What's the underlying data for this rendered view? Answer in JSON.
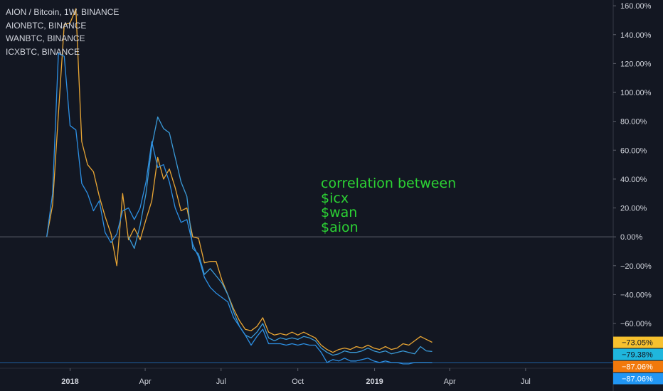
{
  "legend": {
    "main": "AION / Bitcoin, 1W, BINANCE",
    "series": [
      "AIONBTC, BINANCE",
      "WANBTC, BINANCE",
      "ICXBTC, BINANCE"
    ]
  },
  "annotation": [
    "correlation between",
    "$icx",
    "$wan",
    "$aion"
  ],
  "colors": {
    "background": "#131722",
    "orange": "#e9a634",
    "blue_light": "#3a9ad8",
    "blue": "#2c8fe3",
    "badge_yellow": "#f7c12e",
    "badge_cyan": "#1fb6dd",
    "badge_orange": "#f1790b",
    "badge_blue": "#2196f3",
    "zero_line": "#5d606b",
    "baseline": "#1f5fa0"
  },
  "chart_data": {
    "type": "line",
    "ylabel": "",
    "xlabel": "",
    "ylim": [
      -91,
      164
    ],
    "y_ticks": [
      160,
      140,
      120,
      100,
      80,
      60,
      40,
      20,
      0,
      -20,
      -40,
      -60
    ],
    "y_tick_labels": [
      "160.00%",
      "140.00%",
      "120.00%",
      "100.00%",
      "80.00%",
      "60.00%",
      "40.00%",
      "20.00%",
      "0.00%",
      "−20.00%",
      "−40.00%",
      "−60.00%"
    ],
    "x_labels": [
      {
        "label": "2018",
        "date": "2018-01-01",
        "bold": true
      },
      {
        "label": "Apr",
        "date": "2018-04-01",
        "bold": false
      },
      {
        "label": "Jul",
        "date": "2018-07-01",
        "bold": false
      },
      {
        "label": "Oct",
        "date": "2018-10-01",
        "bold": false
      },
      {
        "label": "2019",
        "date": "2019-01-01",
        "bold": true
      },
      {
        "label": "Apr",
        "date": "2019-04-01",
        "bold": false
      },
      {
        "label": "Jul",
        "date": "2019-07-01",
        "bold": false
      }
    ],
    "x_range": [
      "2017-10-09",
      "2019-10-14"
    ],
    "grid": false,
    "legend_position": "top-left",
    "series": [
      {
        "name": "AIONBTC, BINANCE",
        "color": "#e9a634",
        "points": [
          [
            "2017-12-04",
            0
          ],
          [
            "2017-12-11",
            22
          ],
          [
            "2017-12-18",
            85
          ],
          [
            "2017-12-25",
            147
          ],
          [
            "2018-01-01",
            148
          ],
          [
            "2018-01-08",
            158
          ],
          [
            "2018-01-15",
            66
          ],
          [
            "2018-01-22",
            50
          ],
          [
            "2018-01-29",
            45
          ],
          [
            "2018-02-05",
            28
          ],
          [
            "2018-02-12",
            14
          ],
          [
            "2018-02-19",
            2
          ],
          [
            "2018-02-26",
            -20
          ],
          [
            "2018-03-05",
            30
          ],
          [
            "2018-03-12",
            -2
          ],
          [
            "2018-03-19",
            6
          ],
          [
            "2018-03-26",
            -2
          ],
          [
            "2018-04-02",
            12
          ],
          [
            "2018-04-09",
            25
          ],
          [
            "2018-04-16",
            55
          ],
          [
            "2018-04-23",
            40
          ],
          [
            "2018-04-30",
            47
          ],
          [
            "2018-05-07",
            34
          ],
          [
            "2018-05-14",
            18
          ],
          [
            "2018-05-21",
            20
          ],
          [
            "2018-05-28",
            0
          ],
          [
            "2018-06-04",
            -1
          ],
          [
            "2018-06-11",
            -18
          ],
          [
            "2018-06-18",
            -17
          ],
          [
            "2018-06-25",
            -17
          ],
          [
            "2018-07-02",
            -30
          ],
          [
            "2018-07-09",
            -40
          ],
          [
            "2018-07-16",
            -50
          ],
          [
            "2018-07-23",
            -58
          ],
          [
            "2018-07-30",
            -64
          ],
          [
            "2018-08-06",
            -65
          ],
          [
            "2018-08-13",
            -62
          ],
          [
            "2018-08-20",
            -56
          ],
          [
            "2018-08-27",
            -66
          ],
          [
            "2018-09-03",
            -68
          ],
          [
            "2018-09-10",
            -67
          ],
          [
            "2018-09-17",
            -68
          ],
          [
            "2018-09-24",
            -66
          ],
          [
            "2018-10-01",
            -68
          ],
          [
            "2018-10-08",
            -66
          ],
          [
            "2018-10-15",
            -68
          ],
          [
            "2018-10-22",
            -70
          ],
          [
            "2018-10-29",
            -75
          ],
          [
            "2018-11-05",
            -78
          ],
          [
            "2018-11-12",
            -80
          ],
          [
            "2018-11-19",
            -78
          ],
          [
            "2018-11-26",
            -77
          ],
          [
            "2018-12-03",
            -78
          ],
          [
            "2018-12-10",
            -76
          ],
          [
            "2018-12-17",
            -77
          ],
          [
            "2018-12-24",
            -75
          ],
          [
            "2018-12-31",
            -77
          ],
          [
            "2019-01-07",
            -78
          ],
          [
            "2019-01-14",
            -76
          ],
          [
            "2019-01-21",
            -78
          ],
          [
            "2019-01-28",
            -77
          ],
          [
            "2019-02-04",
            -74
          ],
          [
            "2019-02-11",
            -75
          ],
          [
            "2019-02-18",
            -72
          ],
          [
            "2019-02-25",
            -69
          ],
          [
            "2019-03-04",
            -71
          ],
          [
            "2019-03-11",
            -73.05
          ]
        ]
      },
      {
        "name": "WANBTC, BINANCE",
        "color": "#3a9ad8",
        "points": [
          [
            "2018-03-12",
            0
          ],
          [
            "2018-03-19",
            -8
          ],
          [
            "2018-03-26",
            8
          ],
          [
            "2018-04-02",
            30
          ],
          [
            "2018-04-09",
            63
          ],
          [
            "2018-04-16",
            83
          ],
          [
            "2018-04-23",
            75
          ],
          [
            "2018-04-30",
            72
          ],
          [
            "2018-05-07",
            55
          ],
          [
            "2018-05-14",
            38
          ],
          [
            "2018-05-21",
            28
          ],
          [
            "2018-05-28",
            -8
          ],
          [
            "2018-06-04",
            -12
          ],
          [
            "2018-06-11",
            -26
          ],
          [
            "2018-06-18",
            -22
          ],
          [
            "2018-06-25",
            -27
          ],
          [
            "2018-07-02",
            -32
          ],
          [
            "2018-07-09",
            -40
          ],
          [
            "2018-07-16",
            -52
          ],
          [
            "2018-07-23",
            -62
          ],
          [
            "2018-07-30",
            -68
          ],
          [
            "2018-08-06",
            -70
          ],
          [
            "2018-08-13",
            -66
          ],
          [
            "2018-08-20",
            -60
          ],
          [
            "2018-08-27",
            -70
          ],
          [
            "2018-09-03",
            -72
          ],
          [
            "2018-09-10",
            -70
          ],
          [
            "2018-09-17",
            -71
          ],
          [
            "2018-09-24",
            -70
          ],
          [
            "2018-10-01",
            -71
          ],
          [
            "2018-10-08",
            -69
          ],
          [
            "2018-10-15",
            -70
          ],
          [
            "2018-10-22",
            -72
          ],
          [
            "2018-10-29",
            -77
          ],
          [
            "2018-11-05",
            -80
          ],
          [
            "2018-11-12",
            -82
          ],
          [
            "2018-11-19",
            -81
          ],
          [
            "2018-11-26",
            -79
          ],
          [
            "2018-12-03",
            -80
          ],
          [
            "2018-12-10",
            -80
          ],
          [
            "2018-12-17",
            -79
          ],
          [
            "2018-12-24",
            -77
          ],
          [
            "2018-12-31",
            -79
          ],
          [
            "2019-01-07",
            -80
          ],
          [
            "2019-01-14",
            -79
          ],
          [
            "2019-01-21",
            -81
          ],
          [
            "2019-01-28",
            -80
          ],
          [
            "2019-02-04",
            -79
          ],
          [
            "2019-02-11",
            -80
          ],
          [
            "2019-02-18",
            -81
          ],
          [
            "2019-02-25",
            -76
          ],
          [
            "2019-03-04",
            -79
          ],
          [
            "2019-03-11",
            -79.38
          ]
        ]
      },
      {
        "name": "ICXBTC, BINANCE",
        "color": "#2c8fe3",
        "points": [
          [
            "2017-12-04",
            0
          ],
          [
            "2017-12-11",
            30
          ],
          [
            "2017-12-18",
            127
          ],
          [
            "2017-12-25",
            125
          ],
          [
            "2018-01-01",
            77
          ],
          [
            "2018-01-08",
            74
          ],
          [
            "2018-01-15",
            37
          ],
          [
            "2018-01-22",
            30
          ],
          [
            "2018-01-29",
            18
          ],
          [
            "2018-02-05",
            25
          ],
          [
            "2018-02-12",
            3
          ],
          [
            "2018-02-19",
            -4
          ],
          [
            "2018-02-26",
            2
          ],
          [
            "2018-03-05",
            18
          ],
          [
            "2018-03-12",
            20
          ],
          [
            "2018-03-19",
            12
          ],
          [
            "2018-03-26",
            20
          ],
          [
            "2018-04-02",
            38
          ],
          [
            "2018-04-09",
            66
          ],
          [
            "2018-04-16",
            48
          ],
          [
            "2018-04-23",
            50
          ],
          [
            "2018-04-30",
            38
          ],
          [
            "2018-05-07",
            20
          ],
          [
            "2018-05-14",
            10
          ],
          [
            "2018-05-21",
            12
          ],
          [
            "2018-05-28",
            -5
          ],
          [
            "2018-06-04",
            -14
          ],
          [
            "2018-06-11",
            -28
          ],
          [
            "2018-06-18",
            -35
          ],
          [
            "2018-06-25",
            -39
          ],
          [
            "2018-07-02",
            -42
          ],
          [
            "2018-07-09",
            -45
          ],
          [
            "2018-07-16",
            -56
          ],
          [
            "2018-07-23",
            -62
          ],
          [
            "2018-07-30",
            -68
          ],
          [
            "2018-08-06",
            -75
          ],
          [
            "2018-08-13",
            -69
          ],
          [
            "2018-08-20",
            -64
          ],
          [
            "2018-08-27",
            -74
          ],
          [
            "2018-09-03",
            -74
          ],
          [
            "2018-09-10",
            -74
          ],
          [
            "2018-09-17",
            -75
          ],
          [
            "2018-09-24",
            -74
          ],
          [
            "2018-10-01",
            -75
          ],
          [
            "2018-10-08",
            -74
          ],
          [
            "2018-10-15",
            -75
          ],
          [
            "2018-10-22",
            -75
          ],
          [
            "2018-10-29",
            -80
          ],
          [
            "2018-11-05",
            -87
          ],
          [
            "2018-11-12",
            -85
          ],
          [
            "2018-11-19",
            -86
          ],
          [
            "2018-11-26",
            -84
          ],
          [
            "2018-12-03",
            -86
          ],
          [
            "2018-12-10",
            -86
          ],
          [
            "2018-12-17",
            -85
          ],
          [
            "2018-12-24",
            -84
          ],
          [
            "2018-12-31",
            -86
          ],
          [
            "2019-01-07",
            -87
          ],
          [
            "2019-01-14",
            -86
          ],
          [
            "2019-01-21",
            -87
          ],
          [
            "2019-01-28",
            -87
          ],
          [
            "2019-02-04",
            -88
          ],
          [
            "2019-02-11",
            -88
          ],
          [
            "2019-02-18",
            -87
          ],
          [
            "2019-02-25",
            -87
          ],
          [
            "2019-03-04",
            -87
          ],
          [
            "2019-03-11",
            -87.06
          ]
        ]
      }
    ],
    "last_value_badges": [
      {
        "label": "−73.05%",
        "value": -73.05,
        "bg": "#f7c12e",
        "fg": "#131722"
      },
      {
        "label": "−79.38%",
        "value": -79.38,
        "bg": "#1fb6dd",
        "fg": "#131722"
      },
      {
        "label": "−87.06%",
        "value": -87.06,
        "bg": "#f1790b",
        "fg": "#ffffff"
      },
      {
        "label": "−87.06%",
        "value": -87.06,
        "bg": "#2196f3",
        "fg": "#ffffff"
      }
    ]
  }
}
